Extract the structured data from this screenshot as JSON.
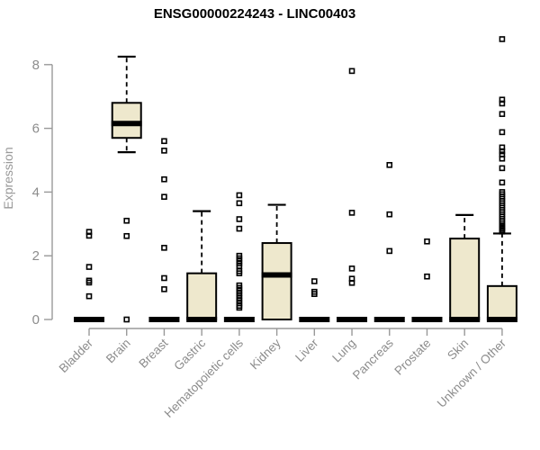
{
  "chart_data": {
    "type": "boxplot",
    "title": "ENSG00000224243 - LINC00403",
    "ylabel": "Expression",
    "xlabel": "",
    "ylim": [
      0,
      8.8
    ],
    "yticks": [
      0,
      2,
      4,
      6,
      8
    ],
    "grid": false,
    "legend": null,
    "colors": {
      "box_fill": "#EEE8CD",
      "box_stroke": "#000000",
      "median": "#000000",
      "outlier": "#000000",
      "axis": "#999999",
      "tick_label": "#8C8C8C",
      "title": "#000000"
    },
    "categories": [
      "Bladder",
      "Brain",
      "Breast",
      "Gastric",
      "Hematopoietic cells",
      "Kidney",
      "Liver",
      "Lung",
      "Pancreas",
      "Prostate",
      "Skin",
      "Unknown / Other"
    ],
    "series": [
      {
        "category": "Bladder",
        "low": 0,
        "q1": 0,
        "median": 0,
        "q3": 0,
        "high": 0,
        "outliers": [
          2.75,
          2.63,
          1.65,
          1.22,
          1.16,
          0.73
        ]
      },
      {
        "category": "Brain",
        "low": 5.25,
        "q1": 5.7,
        "median": 6.15,
        "q3": 6.8,
        "high": 8.25,
        "outliers": [
          3.1,
          2.62,
          0
        ]
      },
      {
        "category": "Breast",
        "low": 0,
        "q1": 0,
        "median": 0,
        "q3": 0,
        "high": 0,
        "outliers": [
          5.6,
          5.3,
          4.4,
          3.85,
          2.25,
          1.3,
          0.95
        ]
      },
      {
        "category": "Gastric",
        "low": 0,
        "q1": 0,
        "median": 0,
        "q3": 1.45,
        "high": 3.4,
        "outliers": []
      },
      {
        "category": "Hematopoietic cells",
        "low": 0,
        "q1": 0,
        "median": 0,
        "q3": 0,
        "high": 0,
        "outliers": [
          3.9,
          3.65,
          3.15,
          2.85,
          2.0,
          1.92,
          1.84,
          1.76,
          1.68,
          1.52,
          1.45,
          1.07,
          0.99,
          0.91,
          0.83,
          0.75,
          0.67,
          0.59,
          0.51,
          0.43,
          0.37
        ]
      },
      {
        "category": "Kidney",
        "low": 0,
        "q1": 0,
        "median": 1.4,
        "q3": 2.4,
        "high": 3.6,
        "outliers": []
      },
      {
        "category": "Liver",
        "low": 0,
        "q1": 0,
        "median": 0,
        "q3": 0,
        "high": 0,
        "outliers": [
          1.2,
          0.87,
          0.8
        ]
      },
      {
        "category": "Lung",
        "low": 0,
        "q1": 0,
        "median": 0,
        "q3": 0,
        "high": 0,
        "outliers": [
          7.8,
          3.35,
          1.6,
          1.28,
          1.15
        ]
      },
      {
        "category": "Pancreas",
        "low": 0,
        "q1": 0,
        "median": 0,
        "q3": 0,
        "high": 0,
        "outliers": [
          4.85,
          3.3,
          2.15
        ]
      },
      {
        "category": "Prostate",
        "low": 0,
        "q1": 0,
        "median": 0,
        "q3": 0,
        "high": 0,
        "outliers": [
          2.45,
          1.35
        ]
      },
      {
        "category": "Skin",
        "low": 0,
        "q1": 0,
        "median": 0,
        "q3": 2.54,
        "high": 3.28,
        "outliers": []
      },
      {
        "category": "Unknown / Other",
        "low": 0,
        "q1": 0,
        "median": 0,
        "q3": 1.05,
        "high": 2.7,
        "outliers": [
          8.8,
          6.9,
          6.78,
          6.45,
          5.88,
          5.4,
          5.28,
          5.18,
          5.05,
          4.75,
          4.3,
          4.0,
          3.93,
          3.86,
          3.79,
          3.72,
          3.65,
          3.58,
          3.51,
          3.44,
          3.37,
          3.3,
          3.23,
          3.16,
          3.09,
          3.02,
          2.95,
          2.9,
          2.85,
          2.8,
          2.76
        ]
      }
    ]
  }
}
